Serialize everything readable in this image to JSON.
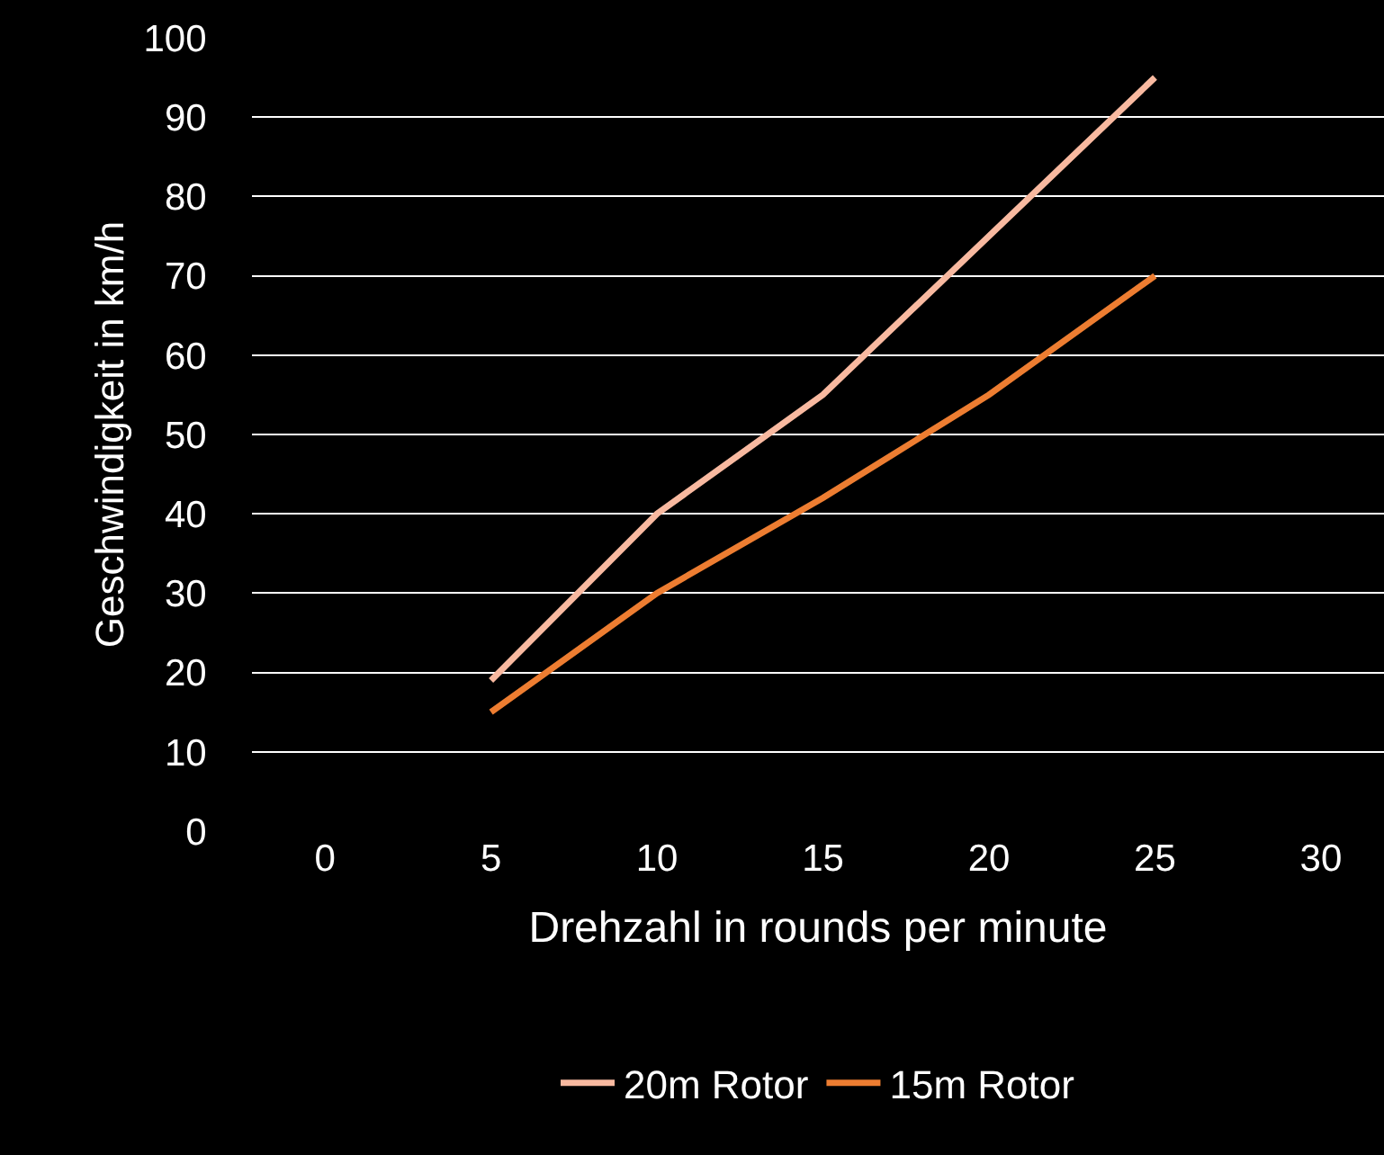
{
  "chart_data": {
    "type": "line",
    "xlabel": "Drehzahl in rounds per minute",
    "ylabel": "Geschwindigkeit in km/h",
    "x": [
      5,
      10,
      15,
      20,
      25
    ],
    "series": [
      {
        "name": "20m Rotor",
        "color": "#f8b9a0",
        "values": [
          19,
          40,
          55,
          75,
          95
        ]
      },
      {
        "name": "15m Rotor",
        "color": "#ed7d31",
        "values": [
          15,
          30,
          42,
          55,
          70
        ]
      }
    ],
    "xlim": [
      -2.2,
      31.9
    ],
    "xticks": [
      0,
      5,
      10,
      15,
      20,
      25,
      30
    ],
    "ylim": [
      0,
      100
    ],
    "yticks": [
      0,
      10,
      20,
      30,
      40,
      50,
      60,
      70,
      80,
      90,
      100
    ],
    "grid": "y",
    "legend": "bottom",
    "marker": "none",
    "line_style": "solid"
  }
}
